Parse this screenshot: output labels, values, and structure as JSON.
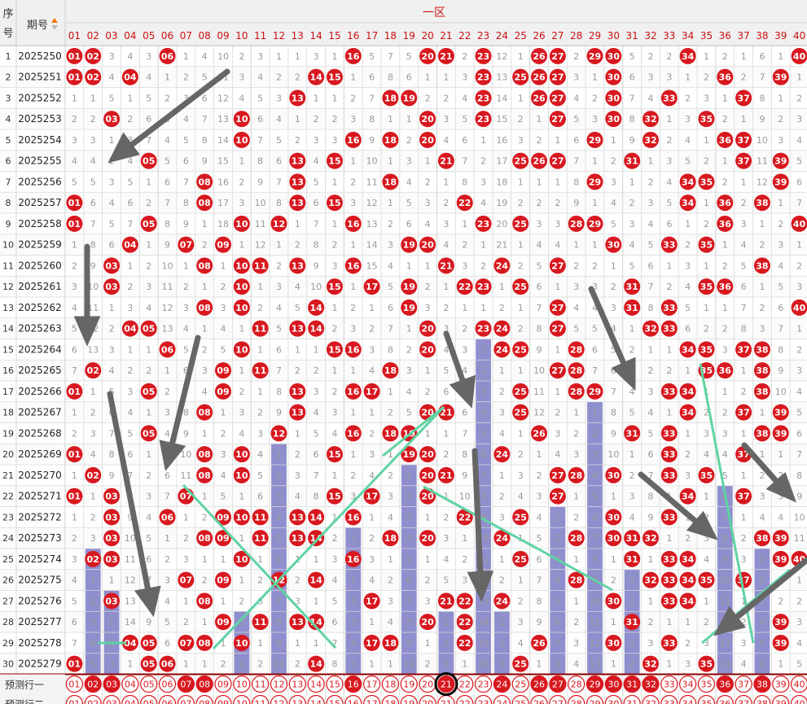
{
  "header": {
    "seq_label_1": "序",
    "seq_label_2": "号",
    "period_label": "期号",
    "zone_title": "一区"
  },
  "columns": [
    "01",
    "02",
    "03",
    "04",
    "05",
    "06",
    "07",
    "08",
    "09",
    "10",
    "11",
    "12",
    "13",
    "14",
    "15",
    "16",
    "17",
    "18",
    "19",
    "20",
    "21",
    "22",
    "23",
    "24",
    "25",
    "26",
    "27",
    "28",
    "29",
    "30",
    "31",
    "32",
    "33",
    "34",
    "35",
    "36",
    "37",
    "38",
    "39",
    "40"
  ],
  "draws": [
    {
      "seq": "1",
      "period": "2025250",
      "nums": [
        1,
        2,
        6,
        16,
        20,
        21,
        23,
        26,
        27,
        29,
        30,
        34,
        40
      ]
    },
    {
      "seq": "2",
      "period": "2025251",
      "nums": [
        1,
        2,
        4,
        14,
        15,
        23,
        25,
        26,
        27,
        30,
        36,
        39
      ]
    },
    {
      "seq": "3",
      "period": "2025252",
      "nums": [
        13,
        18,
        19,
        23,
        26,
        27,
        30,
        33,
        37
      ]
    },
    {
      "seq": "4",
      "period": "2025253",
      "nums": [
        3,
        10,
        20,
        23,
        27,
        30,
        32,
        35
      ]
    },
    {
      "seq": "5",
      "period": "2025254",
      "nums": [
        10,
        16,
        18,
        20,
        29,
        32,
        36,
        37
      ]
    },
    {
      "seq": "6",
      "period": "2025255",
      "nums": [
        5,
        13,
        15,
        21,
        25,
        26,
        27,
        31,
        37,
        39
      ]
    },
    {
      "seq": "7",
      "period": "2025256",
      "nums": [
        8,
        13,
        18,
        29,
        34,
        35,
        39
      ]
    },
    {
      "seq": "8",
      "period": "2025257",
      "nums": [
        1,
        8,
        13,
        15,
        22,
        34,
        36,
        38
      ]
    },
    {
      "seq": "9",
      "period": "2025258",
      "nums": [
        1,
        5,
        10,
        12,
        16,
        23,
        25,
        28,
        29,
        36,
        40
      ]
    },
    {
      "seq": "10",
      "period": "2025259",
      "nums": [
        4,
        7,
        9,
        19,
        20,
        30,
        33,
        35
      ]
    },
    {
      "seq": "11",
      "period": "2025260",
      "nums": [
        3,
        8,
        10,
        11,
        13,
        16,
        21,
        24,
        27,
        38
      ]
    },
    {
      "seq": "12",
      "period": "2025261",
      "nums": [
        3,
        10,
        15,
        17,
        19,
        22,
        23,
        25,
        31,
        35,
        36
      ]
    },
    {
      "seq": "13",
      "period": "2025262",
      "nums": [
        8,
        10,
        14,
        19,
        27,
        31,
        33,
        40
      ]
    },
    {
      "seq": "14",
      "period": "2025263",
      "nums": [
        4,
        5,
        11,
        13,
        14,
        20,
        23,
        24,
        27,
        32,
        33
      ]
    },
    {
      "seq": "15",
      "period": "2025264",
      "nums": [
        6,
        10,
        15,
        16,
        20,
        24,
        25,
        28,
        34,
        35,
        37,
        38
      ]
    },
    {
      "seq": "16",
      "period": "2025265",
      "nums": [
        2,
        9,
        11,
        18,
        27,
        28,
        35,
        36,
        38
      ]
    },
    {
      "seq": "17",
      "period": "2025266",
      "nums": [
        1,
        5,
        9,
        13,
        16,
        17,
        25,
        28,
        29,
        33,
        34,
        38
      ]
    },
    {
      "seq": "18",
      "period": "2025267",
      "nums": [
        8,
        13,
        20,
        21,
        25,
        34,
        37,
        39
      ]
    },
    {
      "seq": "19",
      "period": "2025268",
      "nums": [
        5,
        12,
        16,
        18,
        19,
        26,
        31,
        33,
        38,
        39
      ]
    },
    {
      "seq": "20",
      "period": "2025269",
      "nums": [
        1,
        8,
        10,
        15,
        19,
        20,
        24,
        33,
        37
      ]
    },
    {
      "seq": "21",
      "period": "2025270",
      "nums": [
        2,
        8,
        10,
        20,
        21,
        27,
        28,
        30,
        33,
        35
      ]
    },
    {
      "seq": "22",
      "period": "2025271",
      "nums": [
        1,
        3,
        7,
        15,
        17,
        20,
        27,
        34,
        37
      ]
    },
    {
      "seq": "23",
      "period": "2025272",
      "nums": [
        3,
        6,
        9,
        10,
        11,
        13,
        14,
        16,
        22,
        25,
        30,
        33
      ]
    },
    {
      "seq": "24",
      "period": "2025273",
      "nums": [
        3,
        8,
        9,
        11,
        13,
        14,
        18,
        20,
        24,
        28,
        30,
        31,
        32,
        38,
        39
      ]
    },
    {
      "seq": "25",
      "period": "2025274",
      "nums": [
        2,
        3,
        10,
        16,
        25,
        31,
        33,
        34,
        39,
        40
      ]
    },
    {
      "seq": "26",
      "period": "2025275",
      "nums": [
        7,
        9,
        12,
        14,
        28,
        32,
        33,
        34,
        35,
        37
      ]
    },
    {
      "seq": "27",
      "period": "2025276",
      "nums": [
        3,
        8,
        17,
        21,
        22,
        24,
        30,
        33,
        34
      ]
    },
    {
      "seq": "28",
      "period": "2025277",
      "nums": [
        9,
        11,
        13,
        14,
        20,
        22,
        31,
        39
      ]
    },
    {
      "seq": "29",
      "period": "2025278",
      "nums": [
        4,
        5,
        7,
        8,
        10,
        17,
        18,
        22,
        26,
        30,
        33,
        39
      ]
    },
    {
      "seq": "30",
      "period": "2025279",
      "nums": [
        1,
        5,
        6,
        14,
        25,
        32,
        35
      ]
    }
  ],
  "gaps": [
    [
      0,
      0,
      3,
      4,
      3,
      0,
      1,
      4,
      10,
      2,
      3,
      1,
      1,
      3,
      1,
      0,
      5,
      7,
      5,
      0,
      0,
      2,
      0,
      12,
      1,
      0,
      0,
      2,
      0,
      0,
      5,
      2,
      2,
      0,
      1,
      2,
      1,
      6,
      1,
      0
    ],
    [
      0,
      0,
      4,
      0,
      4,
      1,
      2,
      5,
      11,
      3,
      4,
      2,
      2,
      0,
      0,
      1,
      6,
      8,
      6,
      1,
      1,
      3,
      0,
      13,
      0,
      0,
      0,
      3,
      1,
      0,
      6,
      3,
      3,
      1,
      2,
      0,
      2,
      7,
      0,
      1
    ],
    [
      1,
      1,
      5,
      1,
      5,
      2,
      3,
      6,
      12,
      4,
      5,
      3,
      0,
      1,
      1,
      2,
      7,
      0,
      0,
      2,
      2,
      4,
      0,
      14,
      1,
      0,
      0,
      4,
      2,
      0,
      7,
      4,
      0,
      2,
      3,
      1,
      0,
      8,
      1,
      2
    ],
    [
      2,
      2,
      0,
      2,
      6,
      3,
      4,
      7,
      13,
      0,
      6,
      4,
      1,
      2,
      2,
      3,
      8,
      1,
      1,
      0,
      3,
      5,
      0,
      15,
      2,
      1,
      0,
      5,
      3,
      0,
      8,
      0,
      1,
      3,
      0,
      2,
      1,
      9,
      2,
      3
    ],
    [
      3,
      3,
      1,
      3,
      7,
      4,
      5,
      8,
      14,
      0,
      7,
      5,
      2,
      3,
      3,
      0,
      9,
      0,
      2,
      0,
      4,
      6,
      1,
      16,
      3,
      2,
      1,
      6,
      0,
      1,
      9,
      0,
      2,
      4,
      1,
      0,
      0,
      10,
      3,
      4
    ],
    [
      4,
      4,
      2,
      4,
      0,
      5,
      6,
      9,
      15,
      1,
      8,
      6,
      0,
      4,
      0,
      1,
      10,
      1,
      3,
      1,
      0,
      7,
      2,
      17,
      0,
      0,
      0,
      7,
      1,
      2,
      0,
      1,
      3,
      5,
      2,
      1,
      0,
      11,
      0,
      5
    ],
    [
      5,
      5,
      3,
      5,
      1,
      6,
      7,
      0,
      16,
      2,
      9,
      7,
      0,
      5,
      1,
      2,
      11,
      0,
      4,
      2,
      1,
      8,
      3,
      18,
      1,
      1,
      1,
      8,
      0,
      3,
      1,
      2,
      4,
      0,
      0,
      2,
      1,
      12,
      0,
      6
    ],
    [
      0,
      6,
      4,
      6,
      2,
      7,
      8,
      0,
      17,
      3,
      10,
      8,
      0,
      6,
      0,
      3,
      12,
      1,
      5,
      3,
      2,
      0,
      4,
      19,
      2,
      2,
      2,
      9,
      1,
      4,
      2,
      3,
      5,
      0,
      1,
      0,
      2,
      0,
      1,
      7
    ],
    [
      0,
      7,
      5,
      7,
      0,
      8,
      9,
      1,
      18,
      0,
      11,
      0,
      1,
      7,
      1,
      0,
      13,
      2,
      6,
      4,
      3,
      1,
      0,
      20,
      0,
      3,
      3,
      0,
      0,
      5,
      3,
      4,
      6,
      1,
      2,
      0,
      3,
      1,
      2,
      0
    ],
    [
      1,
      8,
      6,
      0,
      1,
      9,
      0,
      2,
      0,
      1,
      12,
      1,
      2,
      8,
      2,
      1,
      14,
      3,
      0,
      0,
      4,
      2,
      1,
      21,
      1,
      4,
      4,
      1,
      1,
      0,
      4,
      5,
      0,
      2,
      0,
      1,
      4,
      2,
      3,
      1
    ],
    [
      2,
      9,
      0,
      1,
      2,
      10,
      1,
      0,
      1,
      0,
      0,
      2,
      3,
      9,
      3,
      0,
      15,
      4,
      1,
      1,
      0,
      3,
      2,
      0,
      2,
      5,
      0,
      2,
      2,
      1,
      5,
      6,
      1,
      3,
      1,
      2,
      5,
      0,
      4,
      2
    ],
    [
      3,
      10,
      0,
      2,
      3,
      11,
      2,
      1,
      2,
      0,
      1,
      3,
      4,
      10,
      0,
      1,
      0,
      5,
      0,
      2,
      1,
      0,
      0,
      1,
      0,
      6,
      1,
      3,
      3,
      2,
      0,
      7,
      2,
      4,
      0,
      0,
      6,
      1,
      5,
      3
    ],
    [
      4,
      11,
      1,
      3,
      4,
      12,
      3,
      0,
      3,
      0,
      2,
      4,
      5,
      0,
      1,
      2,
      1,
      6,
      0,
      3,
      2,
      1,
      1,
      2,
      1,
      7,
      0,
      4,
      4,
      3,
      0,
      8,
      0,
      5,
      1,
      1,
      7,
      2,
      6,
      0
    ],
    [
      5,
      12,
      2,
      0,
      0,
      13,
      4,
      1,
      4,
      1,
      0,
      5,
      0,
      0,
      2,
      3,
      2,
      7,
      1,
      0,
      3,
      2,
      0,
      0,
      2,
      8,
      0,
      5,
      5,
      4,
      1,
      0,
      0,
      6,
      2,
      2,
      8,
      3,
      7,
      1
    ],
    [
      6,
      13,
      3,
      1,
      1,
      0,
      5,
      2,
      5,
      0,
      1,
      6,
      1,
      1,
      0,
      0,
      3,
      8,
      2,
      0,
      4,
      3,
      1,
      0,
      0,
      9,
      1,
      0,
      6,
      5,
      2,
      1,
      1,
      0,
      0,
      3,
      0,
      0,
      8,
      2
    ],
    [
      7,
      0,
      4,
      2,
      2,
      1,
      6,
      3,
      0,
      1,
      0,
      7,
      2,
      2,
      1,
      1,
      4,
      0,
      3,
      1,
      5,
      4,
      2,
      1,
      1,
      10,
      0,
      0,
      7,
      6,
      3,
      2,
      2,
      1,
      0,
      0,
      1,
      0,
      9,
      3
    ],
    [
      0,
      1,
      5,
      3,
      0,
      2,
      7,
      4,
      0,
      2,
      1,
      8,
      0,
      3,
      2,
      0,
      0,
      1,
      4,
      2,
      6,
      5,
      3,
      2,
      0,
      11,
      1,
      0,
      0,
      7,
      4,
      3,
      0,
      0,
      1,
      1,
      2,
      0,
      10,
      4
    ],
    [
      1,
      2,
      6,
      4,
      1,
      3,
      8,
      0,
      1,
      3,
      2,
      9,
      0,
      4,
      3,
      1,
      1,
      2,
      5,
      0,
      0,
      6,
      4,
      3,
      0,
      12,
      2,
      1,
      1,
      8,
      5,
      4,
      1,
      0,
      2,
      2,
      0,
      1,
      0,
      5
    ],
    [
      2,
      3,
      7,
      5,
      0,
      4,
      9,
      1,
      2,
      4,
      3,
      0,
      1,
      5,
      4,
      0,
      2,
      0,
      0,
      1,
      1,
      7,
      5,
      4,
      1,
      0,
      3,
      2,
      2,
      9,
      0,
      5,
      0,
      1,
      3,
      3,
      1,
      0,
      0,
      6
    ],
    [
      0,
      4,
      8,
      6,
      1,
      5,
      10,
      0,
      3,
      0,
      4,
      1,
      2,
      6,
      0,
      1,
      3,
      1,
      0,
      0,
      2,
      8,
      6,
      0,
      2,
      1,
      4,
      3,
      3,
      10,
      1,
      6,
      0,
      2,
      4,
      4,
      0,
      1,
      1,
      7
    ],
    [
      1,
      0,
      9,
      7,
      2,
      6,
      11,
      0,
      4,
      0,
      5,
      2,
      3,
      7,
      1,
      2,
      4,
      2,
      1,
      0,
      0,
      9,
      7,
      1,
      3,
      2,
      0,
      0,
      4,
      0,
      2,
      7,
      0,
      3,
      0,
      5,
      1,
      2,
      2,
      8
    ],
    [
      0,
      1,
      0,
      8,
      3,
      7,
      0,
      1,
      5,
      1,
      6,
      3,
      4,
      8,
      0,
      3,
      0,
      3,
      2,
      0,
      1,
      10,
      8,
      2,
      4,
      3,
      0,
      1,
      5,
      1,
      3,
      8,
      1,
      0,
      1,
      6,
      0,
      3,
      3,
      9
    ],
    [
      1,
      2,
      0,
      9,
      4,
      0,
      1,
      2,
      0,
      0,
      0,
      4,
      0,
      0,
      1,
      0,
      1,
      4,
      3,
      1,
      2,
      0,
      9,
      3,
      0,
      4,
      1,
      2,
      6,
      0,
      4,
      9,
      0,
      1,
      2,
      7,
      1,
      4,
      4,
      10
    ],
    [
      2,
      3,
      0,
      10,
      5,
      1,
      2,
      0,
      0,
      1,
      0,
      5,
      0,
      0,
      2,
      1,
      2,
      0,
      4,
      0,
      3,
      1,
      10,
      0,
      1,
      5,
      2,
      0,
      7,
      0,
      0,
      0,
      1,
      2,
      3,
      8,
      2,
      0,
      0,
      11
    ],
    [
      3,
      0,
      0,
      11,
      6,
      2,
      3,
      1,
      1,
      0,
      1,
      6,
      1,
      1,
      3,
      0,
      3,
      1,
      5,
      1,
      4,
      2,
      11,
      1,
      0,
      6,
      3,
      1,
      8,
      1,
      0,
      1,
      0,
      0,
      4,
      9,
      3,
      1,
      0,
      0
    ],
    [
      4,
      1,
      1,
      12,
      7,
      3,
      0,
      2,
      0,
      1,
      2,
      0,
      2,
      0,
      4,
      1,
      4,
      2,
      6,
      2,
      5,
      3,
      12,
      2,
      1,
      7,
      4,
      0,
      9,
      2,
      1,
      0,
      0,
      0,
      0,
      10,
      0,
      2,
      1,
      1
    ],
    [
      5,
      2,
      0,
      13,
      8,
      4,
      1,
      0,
      1,
      2,
      3,
      7,
      3,
      1,
      5,
      2,
      0,
      3,
      7,
      3,
      0,
      0,
      13,
      0,
      2,
      8,
      5,
      1,
      10,
      0,
      2,
      1,
      0,
      0,
      1,
      11,
      1,
      3,
      2,
      2
    ],
    [
      6,
      3,
      1,
      14,
      9,
      5,
      2,
      1,
      0,
      3,
      0,
      8,
      0,
      0,
      6,
      3,
      1,
      4,
      8,
      0,
      1,
      0,
      14,
      1,
      3,
      9,
      6,
      2,
      11,
      1,
      0,
      2,
      1,
      1,
      2,
      12,
      2,
      4,
      0,
      3
    ],
    [
      7,
      4,
      2,
      0,
      0,
      6,
      0,
      0,
      1,
      0,
      1,
      9,
      1,
      1,
      7,
      4,
      0,
      0,
      9,
      1,
      2,
      0,
      15,
      2,
      4,
      0,
      7,
      3,
      12,
      0,
      1,
      3,
      0,
      2,
      3,
      13,
      3,
      5,
      0,
      4
    ],
    [
      0,
      5,
      3,
      1,
      0,
      0,
      1,
      1,
      2,
      1,
      2,
      10,
      2,
      0,
      8,
      5,
      1,
      1,
      10,
      2,
      3,
      1,
      16,
      3,
      0,
      1,
      8,
      4,
      13,
      1,
      2,
      0,
      1,
      3,
      0,
      14,
      4,
      6,
      1,
      5
    ]
  ],
  "bars": [
    {
      "col": 2,
      "start": 24
    },
    {
      "col": 3,
      "start": 26
    },
    {
      "col": 10,
      "start": 27
    },
    {
      "col": 12,
      "start": 19
    },
    {
      "col": 16,
      "start": 23
    },
    {
      "col": 19,
      "start": 20
    },
    {
      "col": 21,
      "start": 27
    },
    {
      "col": 23,
      "start": 14
    },
    {
      "col": 24,
      "start": 27
    },
    {
      "col": 27,
      "start": 22
    },
    {
      "col": 29,
      "start": 17
    },
    {
      "col": 31,
      "start": 25
    },
    {
      "col": 36,
      "start": 21
    },
    {
      "col": 38,
      "start": 24
    }
  ],
  "predict_rows": [
    {
      "label": "预测行一",
      "balls": [
        2,
        3,
        7,
        8,
        16,
        21,
        24,
        26,
        27,
        29,
        30,
        31,
        32,
        36,
        38
      ]
    },
    {
      "label": "预测行二",
      "balls": []
    }
  ],
  "colors": {
    "ball_red": "#d8181f",
    "bar_blue": "#8f8fce",
    "trend_green": "#5fd3a3",
    "arrow_gray": "#666666",
    "header_text": "#cc1111",
    "grid_line": "#d9d9d9"
  }
}
